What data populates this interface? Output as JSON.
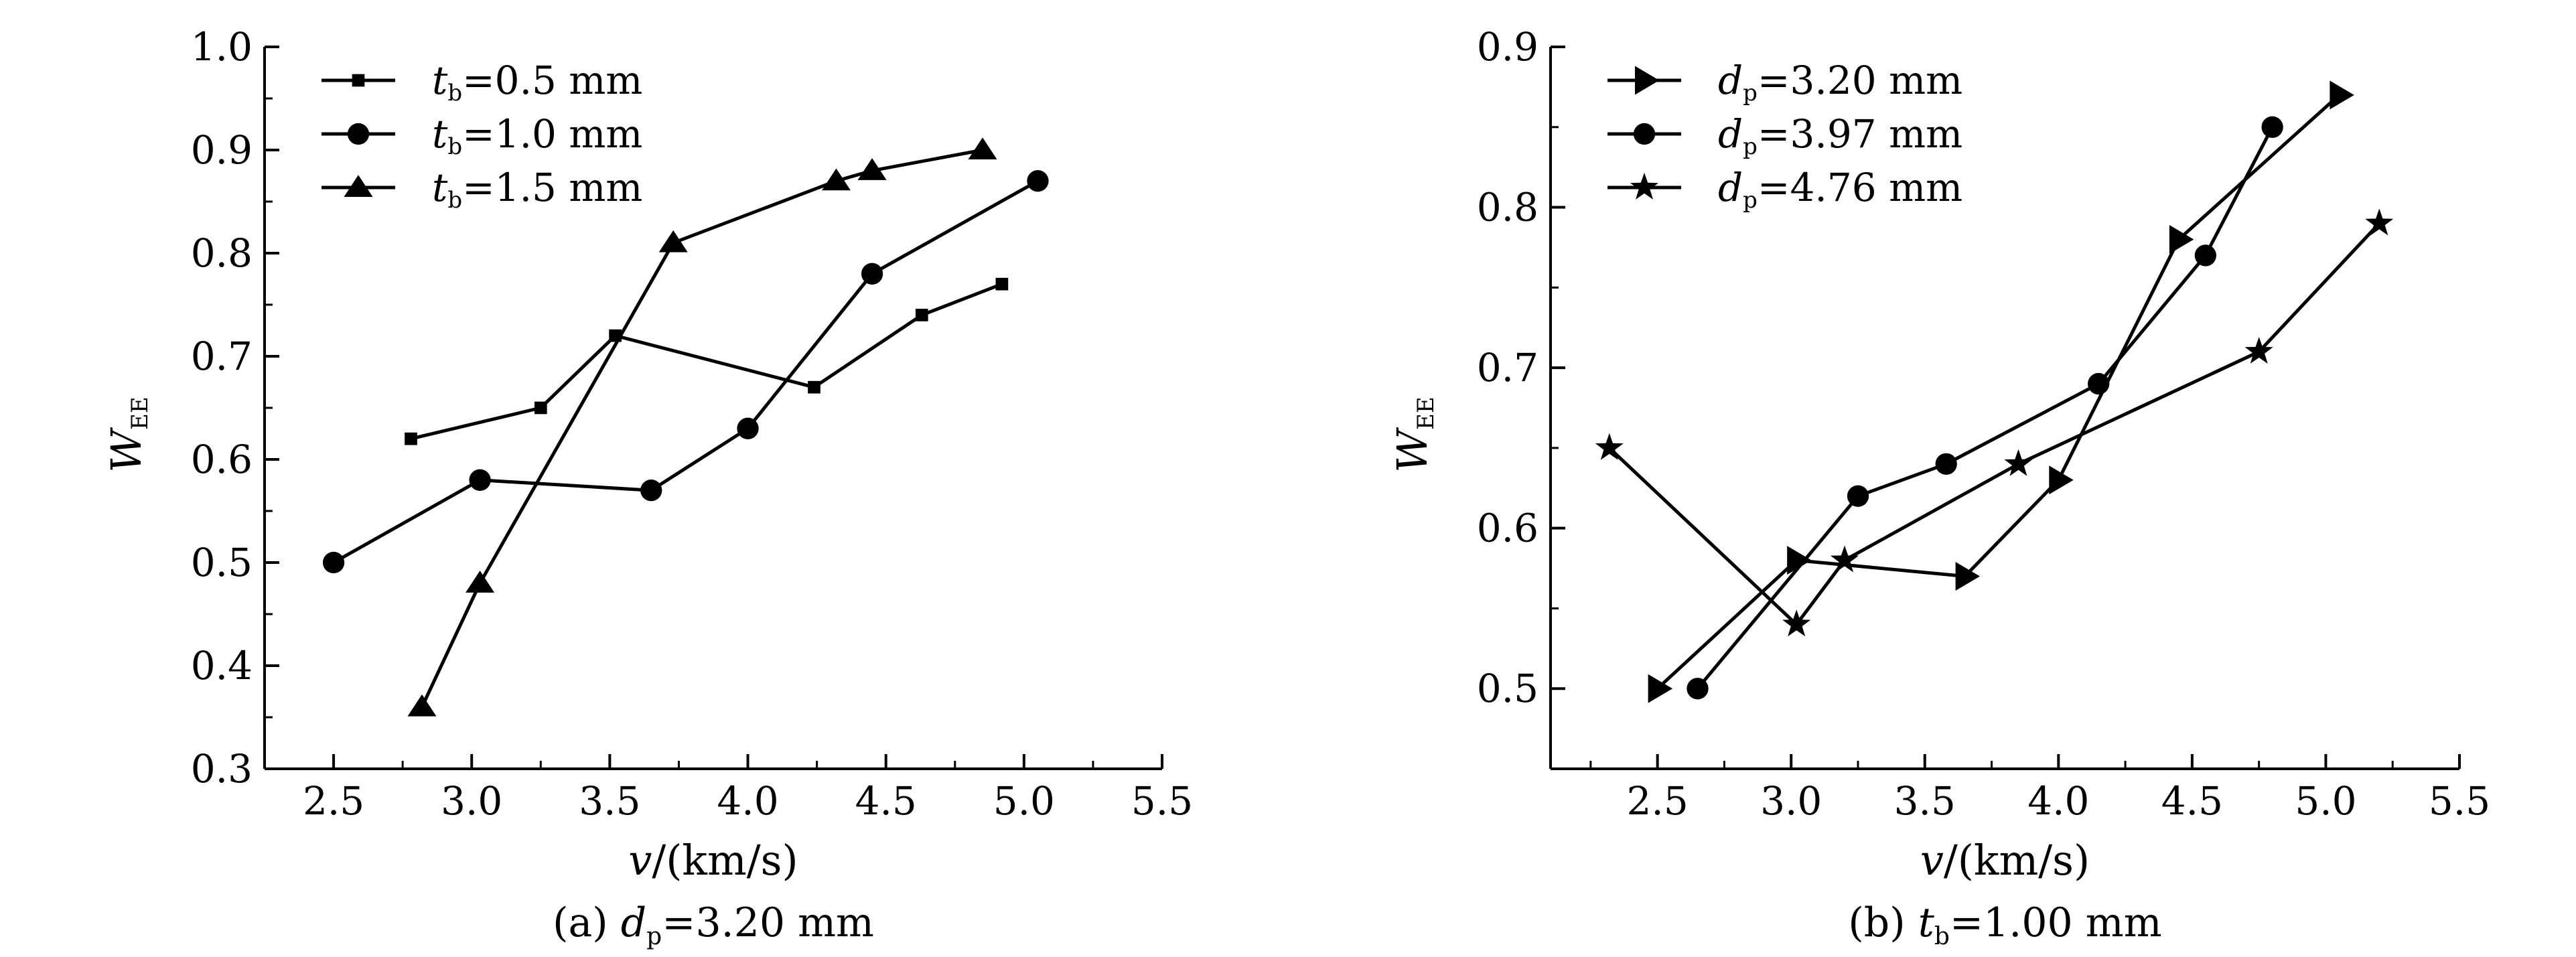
{
  "chart_data": [
    {
      "type": "line",
      "caption_prefix": "(a) ",
      "caption_var": "d",
      "caption_sub": "p",
      "caption_value": "=3.20 mm",
      "xlabel_var": "v",
      "xlabel_unit": "/(km/s)",
      "ylabel_var": "W",
      "ylabel_sub": "EE",
      "xlim": [
        2.25,
        5.5
      ],
      "ylim": [
        0.3,
        1.0
      ],
      "xticks": [
        "2.5",
        "3.0",
        "3.5",
        "4.0",
        "4.5",
        "5.0",
        "5.5"
      ],
      "yticks": [
        "0.3",
        "0.4",
        "0.5",
        "0.6",
        "0.7",
        "0.8",
        "0.9",
        "1.0"
      ],
      "legend_position": "top-left",
      "series": [
        {
          "legend_var": "t",
          "legend_sub": "b",
          "legend_value": "=0.5 mm",
          "marker": "square",
          "x": [
            2.78,
            3.25,
            3.52,
            4.24,
            4.63,
            4.92
          ],
          "y": [
            0.62,
            0.65,
            0.72,
            0.67,
            0.74,
            0.77
          ]
        },
        {
          "legend_var": "t",
          "legend_sub": "b",
          "legend_value": "=1.0 mm",
          "marker": "circle",
          "x": [
            2.5,
            3.03,
            3.65,
            4.0,
            4.45,
            5.05
          ],
          "y": [
            0.5,
            0.58,
            0.57,
            0.63,
            0.78,
            0.87
          ]
        },
        {
          "legend_var": "t",
          "legend_sub": "b",
          "legend_value": "=1.5 mm",
          "marker": "triangle",
          "x": [
            2.82,
            3.03,
            3.73,
            4.32,
            4.45,
            4.85
          ],
          "y": [
            0.36,
            0.48,
            0.81,
            0.87,
            0.88,
            0.9
          ]
        }
      ]
    },
    {
      "type": "line",
      "caption_prefix": "(b) ",
      "caption_var": "t",
      "caption_sub": "b",
      "caption_value": "=1.00 mm",
      "xlabel_var": "v",
      "xlabel_unit": "/(km/s)",
      "ylabel_var": "W",
      "ylabel_sub": "EE",
      "xlim": [
        2.1,
        5.5
      ],
      "ylim": [
        0.45,
        0.9
      ],
      "xticks": [
        "2.5",
        "3.0",
        "3.5",
        "4.0",
        "4.5",
        "5.0",
        "5.5"
      ],
      "yticks": [
        "0.5",
        "0.6",
        "0.7",
        "0.8",
        "0.9"
      ],
      "legend_position": "top-left",
      "series": [
        {
          "legend_var": "d",
          "legend_sub": "p",
          "legend_value": "=3.20 mm",
          "marker": "triangle-right",
          "x": [
            2.5,
            3.02,
            3.65,
            4.0,
            4.45,
            5.05
          ],
          "y": [
            0.5,
            0.58,
            0.57,
            0.63,
            0.78,
            0.87
          ]
        },
        {
          "legend_var": "d",
          "legend_sub": "p",
          "legend_value": "=3.97 mm",
          "marker": "circle",
          "x": [
            2.65,
            3.25,
            3.58,
            4.15,
            4.55,
            4.8
          ],
          "y": [
            0.5,
            0.62,
            0.64,
            0.69,
            0.77,
            0.85
          ]
        },
        {
          "legend_var": "d",
          "legend_sub": "p",
          "legend_value": "=4.76 mm",
          "marker": "star",
          "x": [
            2.32,
            3.02,
            3.2,
            3.85,
            4.75,
            5.2
          ],
          "y": [
            0.65,
            0.54,
            0.58,
            0.64,
            0.71,
            0.79
          ]
        }
      ]
    }
  ]
}
